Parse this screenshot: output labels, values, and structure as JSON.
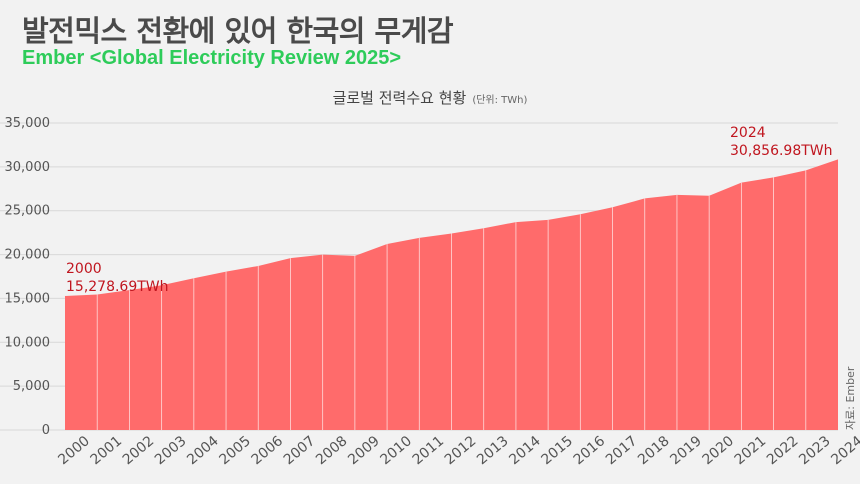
{
  "title": "발전믹스 전환에 있어 한국의 무게감",
  "subtitle": "Ember <Global Electricity Review 2025>",
  "source": "자료: Ember",
  "colors": {
    "area": "#ff6b6b",
    "annotation": "#c0161f",
    "grid": "#d8d8d8",
    "subtitle": "#2ecc5a"
  },
  "chart_data": {
    "type": "area",
    "title": "글로벌 전력수요 현황",
    "unit_note": "(단위: TWh)",
    "x": [
      "2000",
      "2001",
      "2002",
      "2003",
      "2004",
      "2005",
      "2006",
      "2007",
      "2008",
      "2009",
      "2010",
      "2011",
      "2012",
      "2013",
      "2014",
      "2015",
      "2016",
      "2017",
      "2018",
      "2019",
      "2020",
      "2021",
      "2022",
      "2023",
      "2024"
    ],
    "values": [
      15278.69,
      15450,
      15950,
      16500,
      17300,
      18050,
      18700,
      19600,
      20000,
      19850,
      21200,
      21900,
      22400,
      23000,
      23700,
      23950,
      24600,
      25400,
      26400,
      26800,
      26700,
      28200,
      28800,
      29600,
      30856.98
    ],
    "ylim": [
      0,
      35000
    ],
    "yticks": [
      "0",
      "5,000",
      "10,000",
      "15,000",
      "20,000",
      "25,000",
      "30,000",
      "35,000"
    ],
    "grid": true,
    "annotations": [
      {
        "year": "2000",
        "value_label": "15,278.69TWh"
      },
      {
        "year": "2024",
        "value_label": "30,856.98TWh"
      }
    ]
  }
}
